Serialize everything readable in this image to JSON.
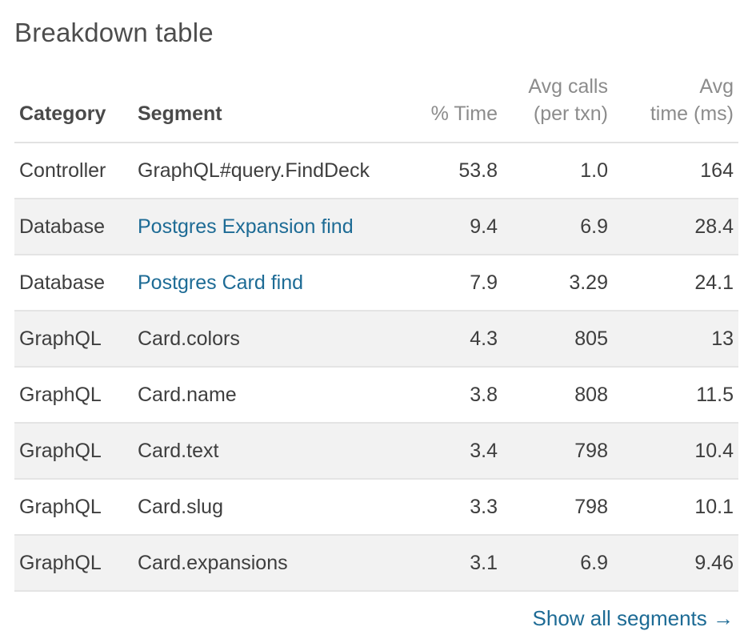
{
  "title": "Breakdown table",
  "columns": {
    "category": "Category",
    "segment": "Segment",
    "pct_time": "% Time",
    "avg_calls_1": "Avg calls",
    "avg_calls_2": "(per txn)",
    "avg_time_1": "Avg",
    "avg_time_2": "time (ms)"
  },
  "rows": [
    {
      "category": "Controller",
      "segment": "GraphQL#query.FindDeck",
      "link": false,
      "pct_time": "53.8",
      "avg_calls": "1.0",
      "avg_time": "164"
    },
    {
      "category": "Database",
      "segment": "Postgres Expansion find",
      "link": true,
      "pct_time": "9.4",
      "avg_calls": "6.9",
      "avg_time": "28.4"
    },
    {
      "category": "Database",
      "segment": "Postgres Card find",
      "link": true,
      "pct_time": "7.9",
      "avg_calls": "3.29",
      "avg_time": "24.1"
    },
    {
      "category": "GraphQL",
      "segment": "Card.colors",
      "link": false,
      "pct_time": "4.3",
      "avg_calls": "805",
      "avg_time": "13"
    },
    {
      "category": "GraphQL",
      "segment": "Card.name",
      "link": false,
      "pct_time": "3.8",
      "avg_calls": "808",
      "avg_time": "11.5"
    },
    {
      "category": "GraphQL",
      "segment": "Card.text",
      "link": false,
      "pct_time": "3.4",
      "avg_calls": "798",
      "avg_time": "10.4"
    },
    {
      "category": "GraphQL",
      "segment": "Card.slug",
      "link": false,
      "pct_time": "3.3",
      "avg_calls": "798",
      "avg_time": "10.1"
    },
    {
      "category": "GraphQL",
      "segment": "Card.expansions",
      "link": false,
      "pct_time": "3.1",
      "avg_calls": "6.9",
      "avg_time": "9.46"
    }
  ],
  "footer": {
    "show_all_label": "Show all segments →"
  },
  "colors": {
    "link": "#1d6b95",
    "text": "#3e3e3e",
    "muted_header": "#8c8c8c",
    "stripe": "#f2f2f2"
  }
}
